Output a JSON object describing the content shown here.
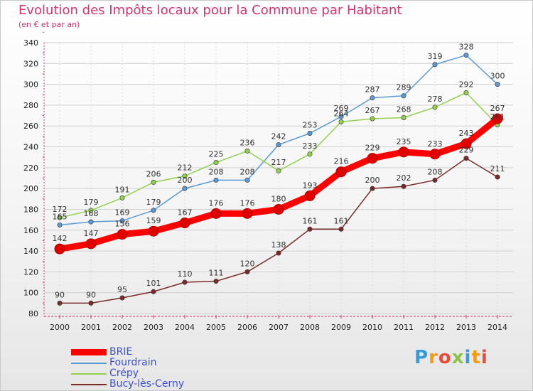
{
  "chart_data": {
    "type": "line",
    "title": "Evolution des Impôts locaux pour la Commune par Habitant",
    "subtitle": "(en € et par an)",
    "xlabel": "",
    "ylabel": "",
    "ylim": [
      80,
      340
    ],
    "yticks": [
      80,
      100,
      120,
      140,
      160,
      180,
      200,
      220,
      240,
      260,
      280,
      300,
      320,
      340
    ],
    "categories": [
      "2000",
      "2001",
      "2002",
      "2003",
      "2004",
      "2005",
      "2006",
      "2007",
      "2008",
      "2009",
      "2010",
      "2011",
      "2012",
      "2013",
      "2014"
    ],
    "grid": true,
    "legend_position": "bottom-left",
    "series": [
      {
        "name": "Fourdrain",
        "color": "#5b9bd5",
        "values": [
          165,
          168,
          169,
          179,
          200,
          208,
          208,
          242,
          253,
          269,
          287,
          289,
          319,
          328,
          300
        ]
      },
      {
        "name": "Crépy",
        "color": "#92d050",
        "values": [
          172,
          179,
          191,
          206,
          212,
          225,
          236,
          217,
          233,
          264,
          267,
          268,
          278,
          292,
          261
        ]
      },
      {
        "name": "Bucy-lès-Cerny",
        "color": "#7b2a2a",
        "values": [
          90,
          90,
          95,
          101,
          110,
          111,
          120,
          138,
          161,
          161,
          200,
          202,
          208,
          229,
          211
        ]
      },
      {
        "name": "BRIE",
        "color": "#ff0000",
        "values": [
          142,
          147,
          156,
          159,
          167,
          176,
          176,
          180,
          193,
          216,
          229,
          235,
          233,
          243,
          267
        ]
      }
    ]
  },
  "legend": [
    "BRIE",
    "Fourdrain",
    "Crépy",
    "Bucy-lès-Cerny"
  ],
  "logo": {
    "letters": [
      "P",
      "r",
      "o",
      "x",
      "i",
      "t",
      "i"
    ],
    "colors": [
      "#3a9bd8",
      "#f39c12",
      "#e84c3d",
      "#8bc34a",
      "#3a9bd8",
      "#f39c12",
      "#e84c3d"
    ]
  }
}
